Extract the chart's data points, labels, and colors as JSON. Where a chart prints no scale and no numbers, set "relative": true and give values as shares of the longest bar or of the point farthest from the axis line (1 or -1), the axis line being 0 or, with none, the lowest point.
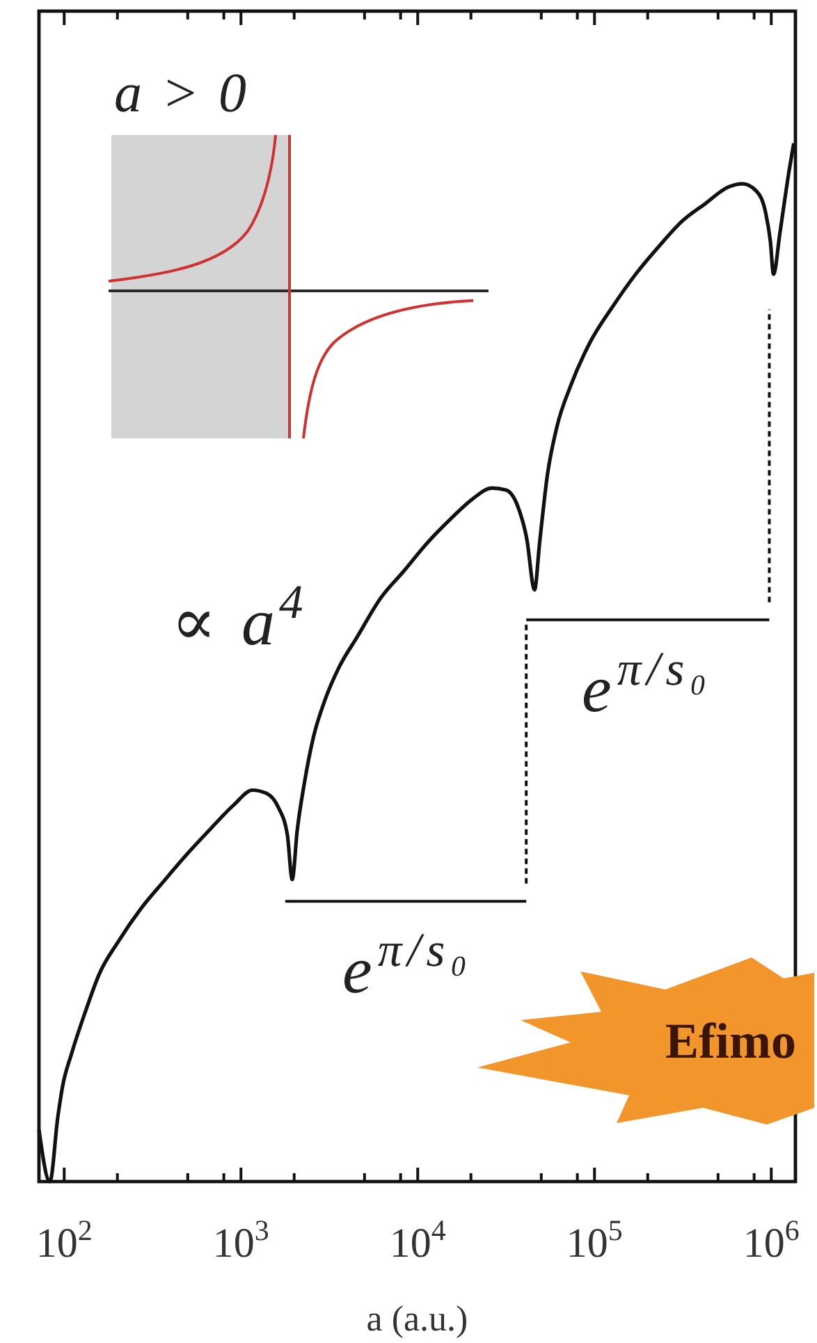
{
  "chart_data": {
    "type": "line",
    "relative": true,
    "log": "x",
    "xlabel": "a (a.u.)",
    "xlim": [
      72,
      1370000
    ],
    "xticks": [
      {
        "value": 100,
        "label": "10$^{2}$"
      },
      {
        "value": 200,
        "label": null
      },
      {
        "value": 500,
        "label": null
      },
      {
        "value": 800,
        "label": null
      },
      {
        "value": 1000,
        "label": "10$^{3}$"
      },
      {
        "value": 2000,
        "label": null
      },
      {
        "value": 5000,
        "label": null
      },
      {
        "value": 8000,
        "label": null
      },
      {
        "value": 10000,
        "label": "10$^{4}$"
      },
      {
        "value": 20000,
        "label": null
      },
      {
        "value": 50000,
        "label": null
      },
      {
        "value": 80000,
        "label": null
      },
      {
        "value": 100000,
        "label": "10$^{5}$"
      },
      {
        "value": 200000,
        "label": null
      },
      {
        "value": 500000,
        "label": null
      },
      {
        "value": 800000,
        "label": null
      },
      {
        "value": 1000000,
        "label": "10$^{6}$"
      }
    ],
    "series": [
      {
        "color": "#111111",
        "x": [
          72,
          83,
          92,
          98,
          110,
          132,
          158,
          202,
          272,
          369,
          499,
          675,
          914,
          1160,
          1390,
          1620,
          1830,
          1950,
          2080,
          2280,
          2570,
          2990,
          3580,
          4560,
          6170,
          8340,
          11300,
          15300,
          20600,
          26300,
          31600,
          36700,
          41400,
          45800,
          48900,
          54300,
          61300,
          73500,
          93500,
          127000,
          171000,
          232000,
          313000,
          424000,
          573000,
          688000,
          824000,
          930000,
          988000,
          1030000,
          1120000,
          1260000,
          1340000
        ],
        "values": [
          0.05,
          0,
          0.062,
          0.092,
          0.123,
          0.164,
          0.2,
          0.231,
          0.263,
          0.29,
          0.316,
          0.34,
          0.363,
          0.377,
          0.374,
          0.361,
          0.334,
          0.291,
          0.338,
          0.383,
          0.428,
          0.464,
          0.495,
          0.525,
          0.562,
          0.588,
          0.615,
          0.638,
          0.658,
          0.668,
          0.666,
          0.651,
          0.619,
          0.57,
          0.615,
          0.682,
          0.727,
          0.767,
          0.807,
          0.843,
          0.874,
          0.901,
          0.925,
          0.942,
          0.958,
          0.961,
          0.954,
          0.933,
          0.906,
          0.874,
          0.914,
          0.973,
          1.0
        ]
      },
      {
        "color": "#111111",
        "x": [
          1780,
          41100
        ],
        "values": [
          0.27,
          0.27
        ]
      },
      {
        "color": "#111111",
        "x": [
          41100,
          41100
        ],
        "values": [
          0.287,
          0.539
        ],
        "line_style": "dashed"
      },
      {
        "color": "#111111",
        "x": [
          41100,
          975000
        ],
        "values": [
          0.541,
          0.541
        ]
      },
      {
        "color": "#111111",
        "x": [
          975000,
          975000
        ],
        "values": [
          0.558,
          0.84
        ],
        "line_style": "dashed"
      }
    ],
    "annotations": [
      "a > 0",
      "∝ a$^{4}$",
      "e$^{π/s₀}$",
      "e$^{π/s₀}$",
      "Efimo"
    ]
  }
}
